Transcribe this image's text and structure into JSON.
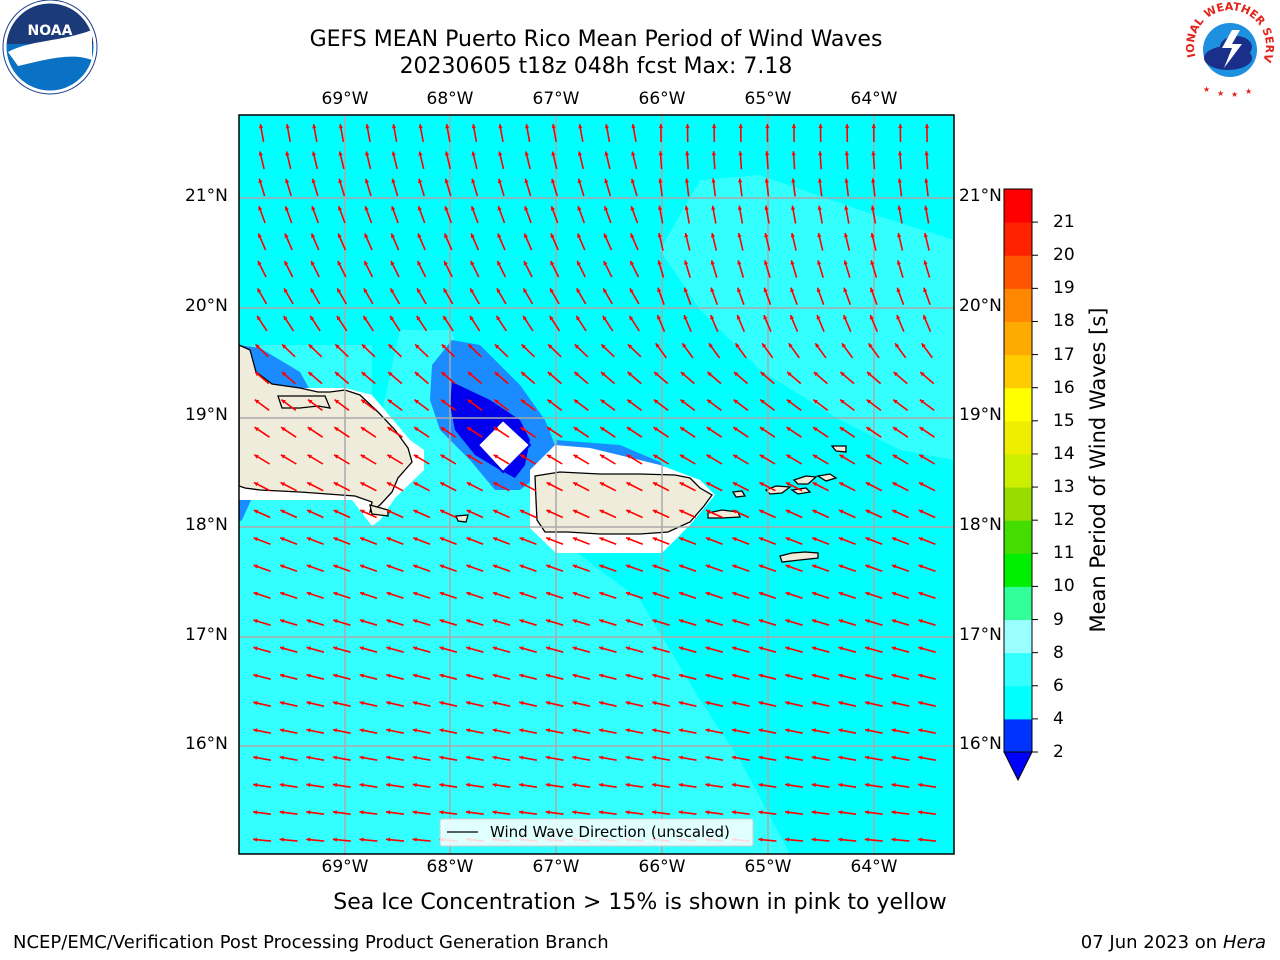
{
  "title": {
    "line1": "GEFS MEAN Puerto Rico Mean Period of Wind Waves",
    "line2": "20230605 t18z 048h fcst   Max: 7.18"
  },
  "map": {
    "lon_labels": [
      "69°W",
      "68°W",
      "67°W",
      "66°W",
      "65°W",
      "64°W"
    ],
    "lat_labels": [
      "21°N",
      "20°N",
      "19°N",
      "18°N",
      "17°N",
      "16°N"
    ],
    "legend_label": "Wind Wave Direction (unscaled)",
    "arrow_color": "#ff0000",
    "coastline_color": "#000000",
    "land_color": "#efecdc",
    "gridline_color": "#aaaaaa"
  },
  "colorbar": {
    "title": "Mean Period of Wind Waves [s]",
    "tick_labels": [
      "2",
      "4",
      "6",
      "8",
      "9",
      "10",
      "11",
      "12",
      "13",
      "14",
      "15",
      "16",
      "17",
      "18",
      "19",
      "20",
      "21"
    ],
    "colors": [
      "#0033ff",
      "#00ffff",
      "#33ffff",
      "#99ffff",
      "#33ff99",
      "#00ee00",
      "#44dd00",
      "#99dd00",
      "#ccee00",
      "#eeee00",
      "#ffff00",
      "#ffcc00",
      "#ffaa00",
      "#ff8800",
      "#ff5500",
      "#ff2200",
      "#ff0000"
    ],
    "extend_color": "#0000ff"
  },
  "footer": {
    "sea_ice_note": "Sea Ice Concentration > 15% is shown in pink to yellow",
    "credit": "NCEP/EMC/Verification Post Processing Product Generation Branch",
    "run_date": "07 Jun 2023 on",
    "machine": "Hera"
  },
  "logos": {
    "noaa_text": "NOAA",
    "nws_text": "NATIONAL WEATHER SERVICE"
  }
}
